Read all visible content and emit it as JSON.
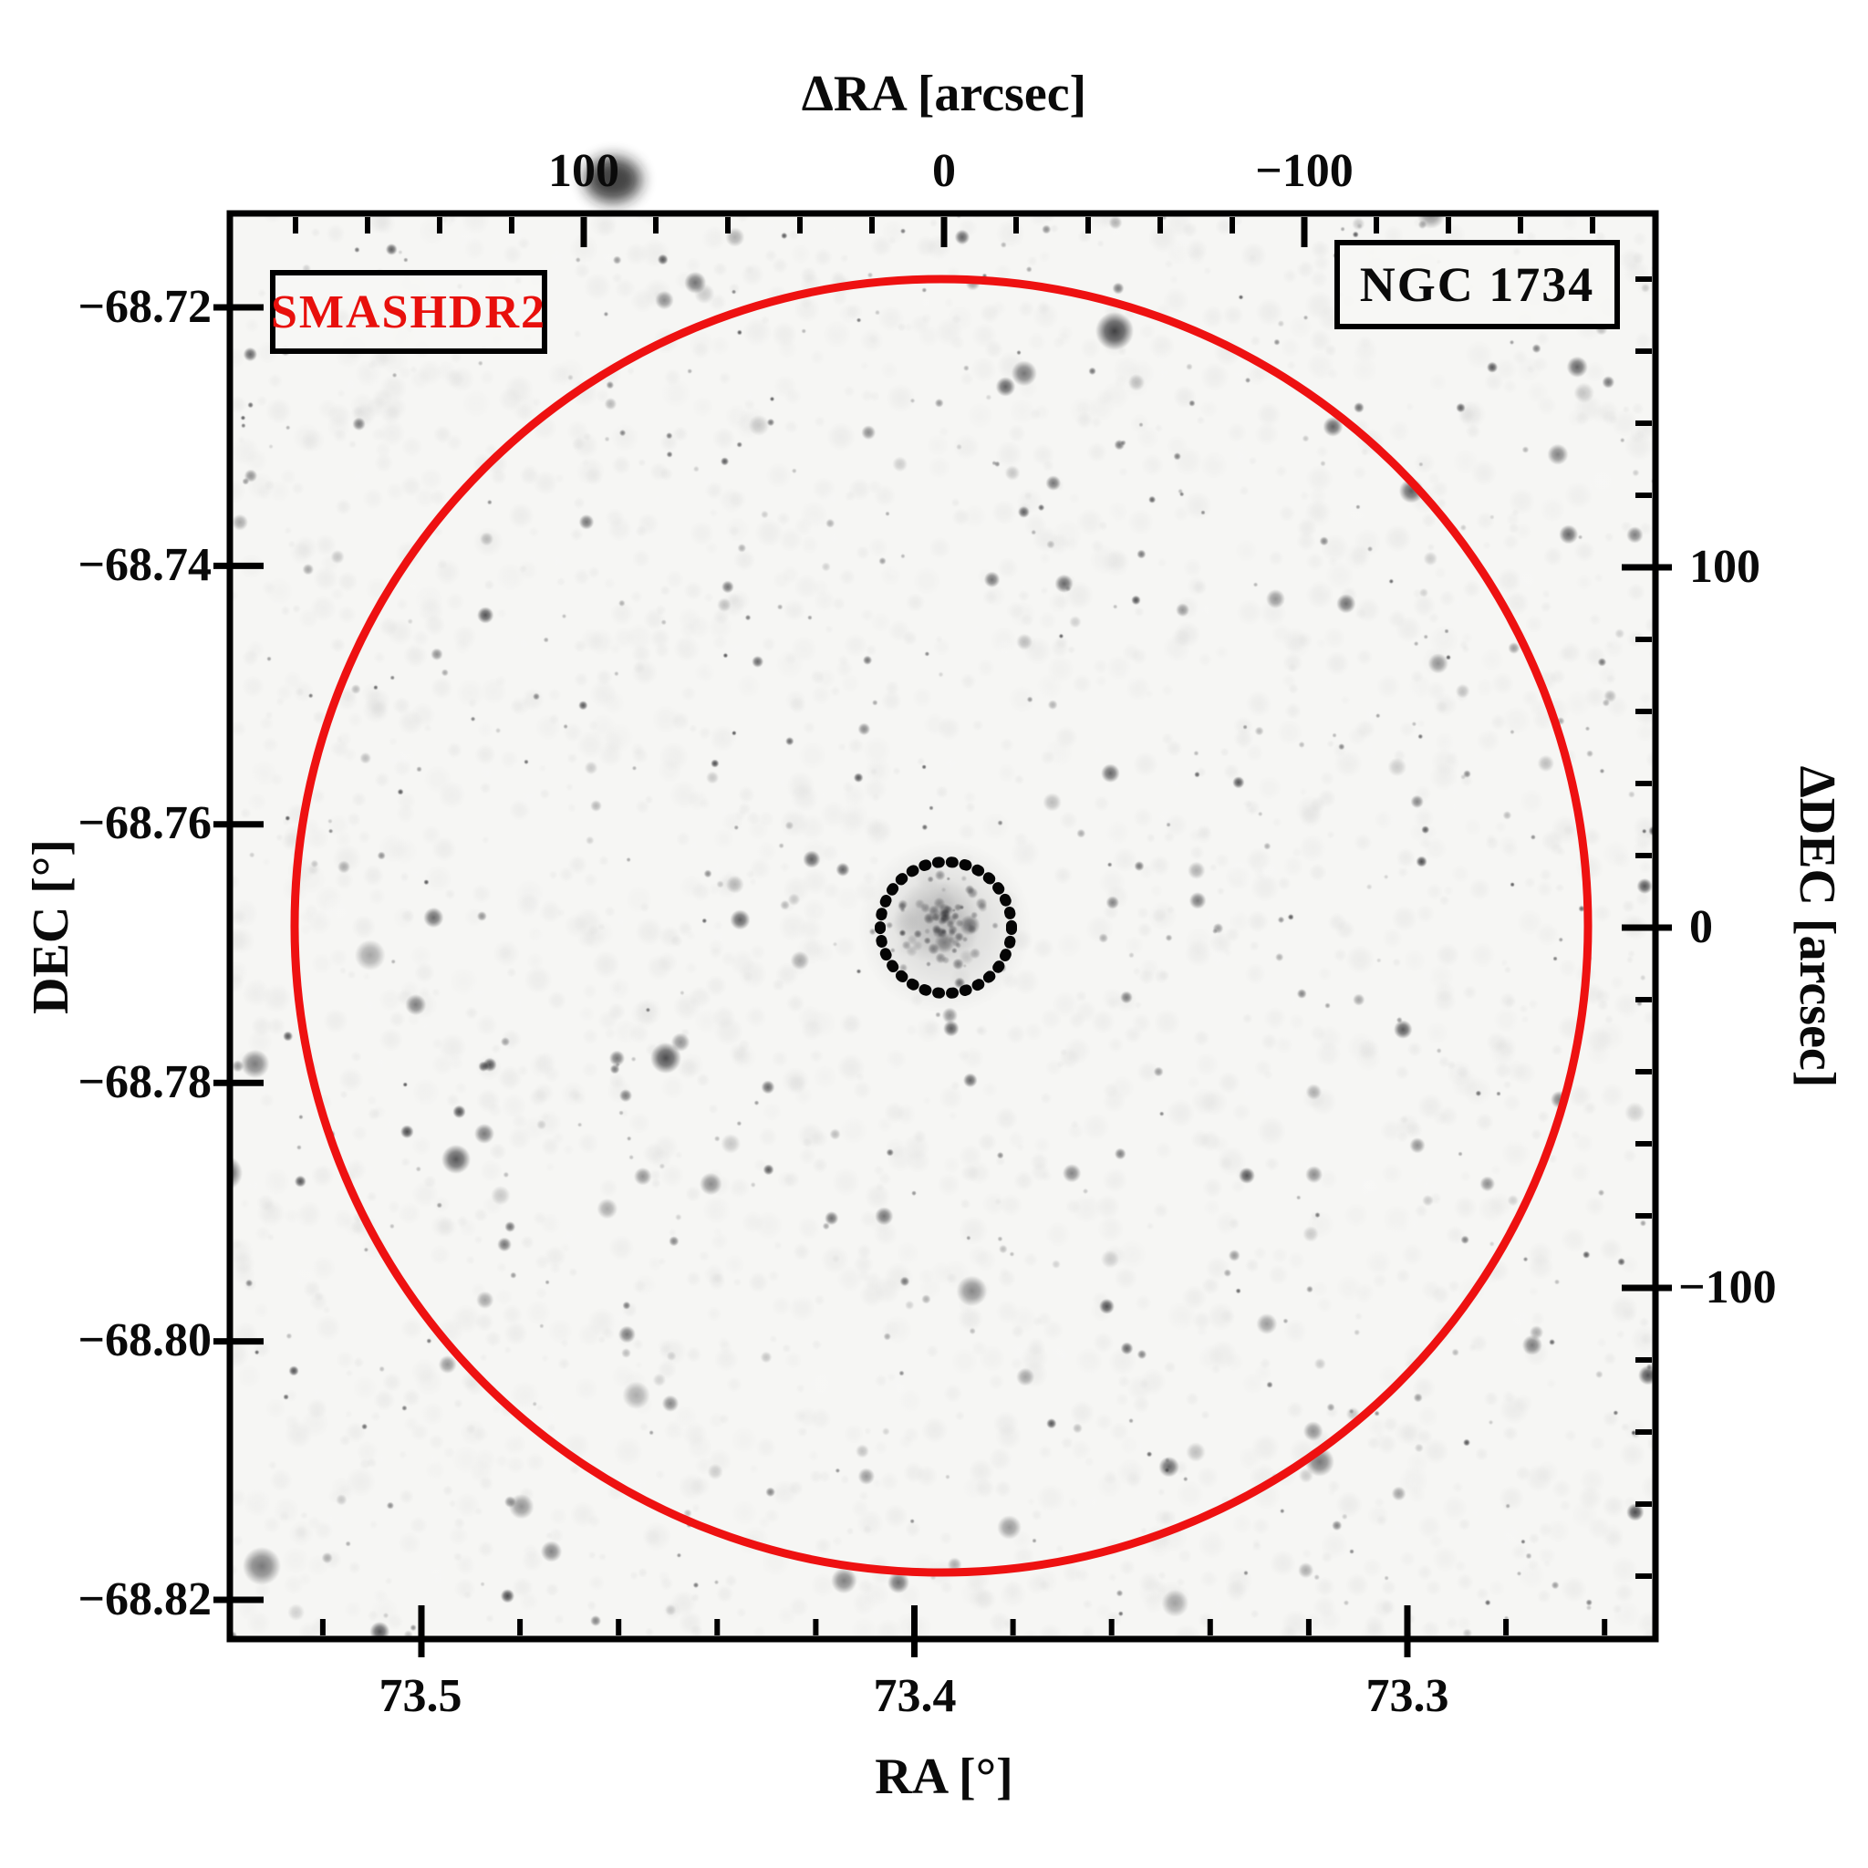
{
  "figure": {
    "survey_badge": "SMASHDR2",
    "target_badge": "NGC 1734",
    "survey_text_color": "#e8100c",
    "frame_color": "#000000"
  },
  "chart_data": {
    "type": "heatmap",
    "subtype": "inverted-grayscale-sky-image",
    "title": "NGC 1734",
    "survey": "SMASHDR2",
    "grid": false,
    "legend_position": "none",
    "axes": {
      "top": {
        "label": "ΔRA [arcsec]",
        "tick_labels": [
          "100",
          "0",
          "−100"
        ],
        "tick_values": [
          100,
          0,
          -100
        ],
        "minor_step": 20,
        "range": [
          198,
          -198
        ]
      },
      "bottom": {
        "label": "RA [°]",
        "tick_labels": [
          "73.5",
          "73.4",
          "73.3"
        ],
        "tick_values": [
          73.5,
          73.4,
          73.3
        ],
        "minor_step": 0.02,
        "range": [
          73.543,
          73.252
        ],
        "inverted": true
      },
      "left": {
        "label": "DEC [°]",
        "tick_labels": [
          "−68.72",
          "−68.74",
          "−68.76",
          "−68.78",
          "−68.80",
          "−68.82"
        ],
        "tick_values": [
          -68.72,
          -68.74,
          -68.76,
          -68.78,
          -68.8,
          -68.82
        ],
        "range": [
          -68.713,
          -68.824
        ]
      },
      "right": {
        "label": "ΔDEC [arcsec]",
        "tick_labels": [
          "100",
          "0",
          "−100"
        ],
        "tick_values": [
          100,
          0,
          -100
        ],
        "minor_step": 20,
        "range": [
          -198,
          198
        ]
      }
    },
    "overlays": [
      {
        "name": "field-radius-circle",
        "shape": "circle",
        "center_dra_arcsec": 0,
        "center_ddec_arcsec": 0,
        "radius_arcsec": 180,
        "line_style": "solid",
        "color": "#ee1111"
      },
      {
        "name": "cluster-core-circle",
        "shape": "circle",
        "center_dra_arcsec": 0,
        "center_ddec_arcsec": 0,
        "radius_arcsec": 18,
        "line_style": "dotted",
        "color": "#000000"
      }
    ]
  }
}
